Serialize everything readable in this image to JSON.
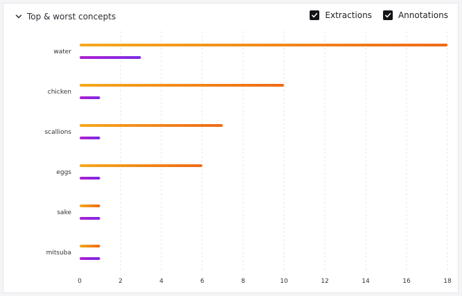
{
  "panel": {
    "title": "Top & worst concepts",
    "collapse_icon": "chevron-down-icon"
  },
  "toggles": [
    {
      "label": "Extractions",
      "checked": true
    },
    {
      "label": "Annotations",
      "checked": true
    }
  ],
  "chart_data": {
    "type": "bar",
    "orientation": "horizontal",
    "categories": [
      "water",
      "chicken",
      "scallions",
      "eggs",
      "sake",
      "mitsuba"
    ],
    "series": [
      {
        "name": "Extractions",
        "values": [
          18,
          10,
          7,
          6,
          1,
          1
        ],
        "color_start": "#f5a81c",
        "color_end": "#ef6a17"
      },
      {
        "name": "Annotations",
        "values": [
          3,
          1,
          1,
          1,
          1,
          1
        ],
        "color_start": "#b01fd1",
        "color_end": "#7a2be4"
      }
    ],
    "x_ticks": [
      0,
      2,
      4,
      6,
      8,
      10,
      12,
      14,
      16,
      18
    ],
    "xlim": [
      0,
      18
    ],
    "grid": true,
    "xlabel": "",
    "ylabel": ""
  }
}
